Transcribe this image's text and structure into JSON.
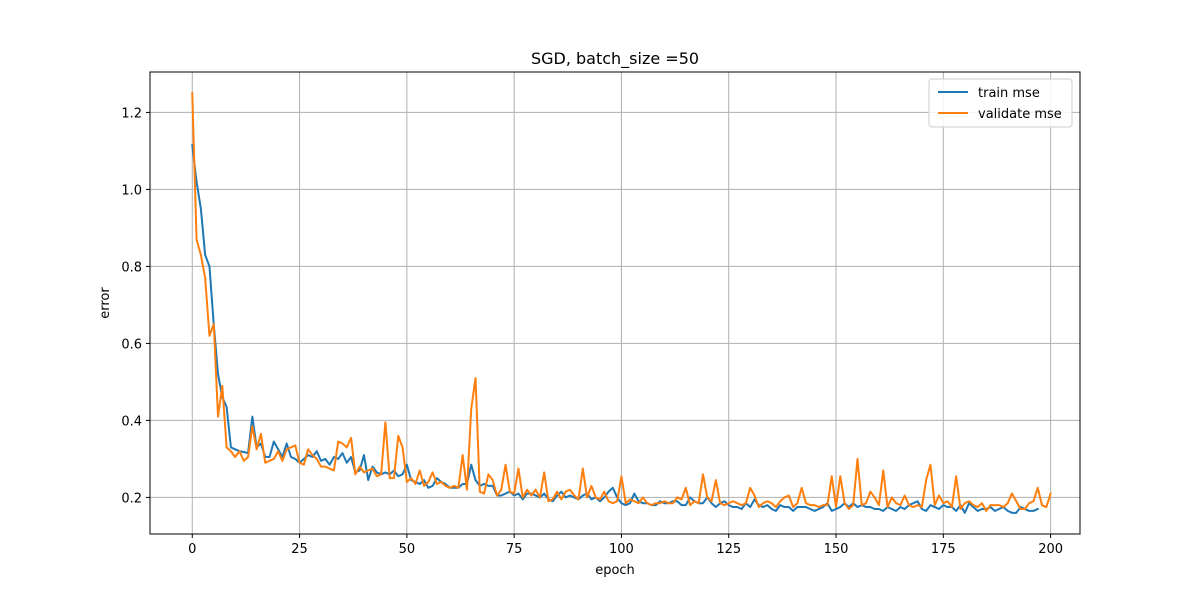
{
  "chart_data": {
    "type": "line",
    "title": "SGD, batch_size =50",
    "xlabel": "epoch",
    "ylabel": "error",
    "xlim": [
      -9.85,
      206.85
    ],
    "ylim": [
      0.105,
      1.305
    ],
    "xticks": [
      0,
      25,
      50,
      75,
      100,
      125,
      150,
      175,
      200
    ],
    "yticks": [
      0.2,
      0.4,
      0.6,
      0.8,
      1.0,
      1.2
    ],
    "ytick_labels": [
      "0.2",
      "0.4",
      "0.6",
      "0.8",
      "1.0",
      "1.2"
    ],
    "grid": true,
    "legend_position": "top-right",
    "series": [
      {
        "name": "train mse",
        "color": "#1f77b4",
        "values": [
          1.115,
          1.02,
          0.95,
          0.83,
          0.8,
          0.65,
          0.52,
          0.46,
          0.435,
          0.33,
          0.325,
          0.32,
          0.318,
          0.315,
          0.41,
          0.33,
          0.34,
          0.305,
          0.305,
          0.345,
          0.325,
          0.305,
          0.34,
          0.305,
          0.3,
          0.29,
          0.3,
          0.31,
          0.305,
          0.32,
          0.295,
          0.3,
          0.285,
          0.305,
          0.3,
          0.315,
          0.29,
          0.305,
          0.265,
          0.27,
          0.31,
          0.245,
          0.28,
          0.265,
          0.26,
          0.265,
          0.26,
          0.27,
          0.255,
          0.26,
          0.285,
          0.245,
          0.24,
          0.235,
          0.245,
          0.225,
          0.23,
          0.25,
          0.24,
          0.235,
          0.225,
          0.225,
          0.225,
          0.235,
          0.235,
          0.285,
          0.245,
          0.23,
          0.235,
          0.23,
          0.23,
          0.205,
          0.205,
          0.21,
          0.215,
          0.205,
          0.21,
          0.195,
          0.21,
          0.21,
          0.205,
          0.2,
          0.21,
          0.195,
          0.19,
          0.205,
          0.215,
          0.2,
          0.205,
          0.2,
          0.195,
          0.205,
          0.21,
          0.195,
          0.2,
          0.19,
          0.2,
          0.215,
          0.225,
          0.2,
          0.185,
          0.18,
          0.185,
          0.21,
          0.19,
          0.185,
          0.185,
          0.18,
          0.18,
          0.19,
          0.185,
          0.185,
          0.19,
          0.19,
          0.18,
          0.18,
          0.2,
          0.19,
          0.185,
          0.185,
          0.2,
          0.185,
          0.175,
          0.185,
          0.19,
          0.18,
          0.175,
          0.175,
          0.17,
          0.185,
          0.175,
          0.195,
          0.18,
          0.175,
          0.18,
          0.17,
          0.165,
          0.18,
          0.175,
          0.175,
          0.165,
          0.175,
          0.175,
          0.175,
          0.17,
          0.165,
          0.17,
          0.175,
          0.185,
          0.165,
          0.17,
          0.175,
          0.185,
          0.175,
          0.185,
          0.175,
          0.18,
          0.175,
          0.175,
          0.17,
          0.17,
          0.165,
          0.175,
          0.17,
          0.165,
          0.175,
          0.17,
          0.18,
          0.185,
          0.19,
          0.17,
          0.165,
          0.18,
          0.175,
          0.17,
          0.18,
          0.175,
          0.175,
          0.165,
          0.18,
          0.16,
          0.185,
          0.175,
          0.165,
          0.17,
          0.17,
          0.175,
          0.165,
          0.17,
          0.175,
          0.165,
          0.16,
          0.16,
          0.175,
          0.17,
          0.165,
          0.165,
          0.17
        ]
      },
      {
        "name": "validate mse",
        "color": "#ff7f0e",
        "values": [
          1.25,
          0.87,
          0.83,
          0.77,
          0.62,
          0.65,
          0.41,
          0.49,
          0.33,
          0.32,
          0.305,
          0.32,
          0.295,
          0.305,
          0.385,
          0.325,
          0.365,
          0.29,
          0.295,
          0.3,
          0.32,
          0.295,
          0.325,
          0.33,
          0.335,
          0.29,
          0.285,
          0.325,
          0.31,
          0.3,
          0.28,
          0.28,
          0.275,
          0.27,
          0.345,
          0.34,
          0.33,
          0.355,
          0.26,
          0.28,
          0.265,
          0.27,
          0.275,
          0.255,
          0.26,
          0.395,
          0.25,
          0.25,
          0.36,
          0.33,
          0.24,
          0.25,
          0.235,
          0.27,
          0.23,
          0.24,
          0.265,
          0.235,
          0.24,
          0.23,
          0.225,
          0.23,
          0.225,
          0.31,
          0.22,
          0.43,
          0.51,
          0.215,
          0.21,
          0.26,
          0.245,
          0.205,
          0.22,
          0.285,
          0.215,
          0.21,
          0.275,
          0.2,
          0.22,
          0.205,
          0.22,
          0.2,
          0.265,
          0.19,
          0.195,
          0.215,
          0.195,
          0.215,
          0.22,
          0.205,
          0.195,
          0.275,
          0.2,
          0.23,
          0.2,
          0.195,
          0.215,
          0.19,
          0.185,
          0.19,
          0.255,
          0.185,
          0.195,
          0.19,
          0.185,
          0.2,
          0.185,
          0.18,
          0.185,
          0.185,
          0.19,
          0.185,
          0.185,
          0.2,
          0.195,
          0.225,
          0.18,
          0.19,
          0.185,
          0.26,
          0.2,
          0.19,
          0.245,
          0.185,
          0.18,
          0.185,
          0.19,
          0.185,
          0.18,
          0.185,
          0.225,
          0.205,
          0.175,
          0.185,
          0.19,
          0.185,
          0.175,
          0.19,
          0.2,
          0.205,
          0.175,
          0.185,
          0.225,
          0.185,
          0.18,
          0.18,
          0.175,
          0.18,
          0.18,
          0.255,
          0.175,
          0.255,
          0.185,
          0.17,
          0.18,
          0.3,
          0.18,
          0.185,
          0.215,
          0.2,
          0.18,
          0.27,
          0.175,
          0.2,
          0.185,
          0.18,
          0.205,
          0.18,
          0.175,
          0.18,
          0.175,
          0.245,
          0.285,
          0.18,
          0.205,
          0.185,
          0.19,
          0.175,
          0.255,
          0.17,
          0.185,
          0.19,
          0.18,
          0.175,
          0.185,
          0.165,
          0.18,
          0.18,
          0.18,
          0.175,
          0.185,
          0.21,
          0.19,
          0.17,
          0.17,
          0.185,
          0.19,
          0.225,
          0.18,
          0.175,
          0.21
        ]
      }
    ]
  }
}
